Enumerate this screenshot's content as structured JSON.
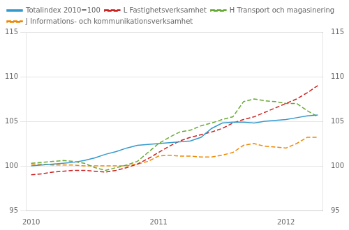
{
  "chart_data": {
    "type": "line",
    "categories": [
      "2010",
      null,
      null,
      null,
      null,
      null,
      null,
      null,
      null,
      null,
      null,
      null,
      "2011",
      null,
      null,
      null,
      null,
      null,
      null,
      null,
      null,
      null,
      null,
      null,
      "2012",
      null,
      null,
      null
    ],
    "series": [
      {
        "name": "Totalindex 2010=100",
        "color": "#3399cc",
        "line_style": "solid",
        "values": [
          100.0,
          100.1,
          100.2,
          100.3,
          100.4,
          100.6,
          100.9,
          101.3,
          101.6,
          102.0,
          102.3,
          102.4,
          102.5,
          102.6,
          102.7,
          102.8,
          103.2,
          104.2,
          104.8,
          104.9,
          104.9,
          104.8,
          105.0,
          105.1,
          105.2,
          105.4,
          105.6,
          105.7
        ]
      },
      {
        "name": "L Fastighetsverksamhet",
        "color": "#cc2222",
        "line_style": "dashed",
        "values": [
          99.0,
          99.1,
          99.3,
          99.4,
          99.5,
          99.5,
          99.4,
          99.3,
          99.5,
          99.8,
          100.2,
          100.8,
          101.5,
          102.2,
          102.8,
          103.2,
          103.5,
          103.8,
          104.2,
          104.8,
          105.2,
          105.5,
          106.0,
          106.5,
          107.0,
          107.5,
          108.2,
          109.0
        ]
      },
      {
        "name": "H Transport och magasinering",
        "color": "#66aa33",
        "line_style": "dashed",
        "values": [
          100.3,
          100.4,
          100.5,
          100.6,
          100.5,
          100.3,
          99.8,
          99.5,
          99.8,
          100.1,
          100.5,
          101.5,
          102.5,
          103.2,
          103.8,
          104.0,
          104.5,
          104.8,
          105.2,
          105.5,
          107.2,
          107.5,
          107.3,
          107.2,
          107.0,
          107.0,
          106.2,
          105.5
        ]
      },
      {
        "name": "J Informations- och kommunikationsverksamhet",
        "color": "#ee8800",
        "line_style": "dashed",
        "values": [
          100.2,
          100.2,
          100.1,
          100.1,
          100.1,
          100.0,
          100.0,
          100.0,
          100.0,
          100.0,
          100.2,
          100.5,
          101.1,
          101.2,
          101.1,
          101.1,
          101.0,
          101.0,
          101.2,
          101.5,
          102.3,
          102.5,
          102.2,
          102.1,
          102.0,
          102.5,
          103.2,
          103.2
        ]
      }
    ],
    "ylim": [
      95,
      115
    ],
    "yticks": [
      95,
      100,
      105,
      110,
      115
    ],
    "y2lim": [
      95,
      115
    ],
    "y2ticks": [
      95,
      100,
      105,
      110,
      115
    ],
    "grid": "y",
    "legend": "upper left"
  }
}
